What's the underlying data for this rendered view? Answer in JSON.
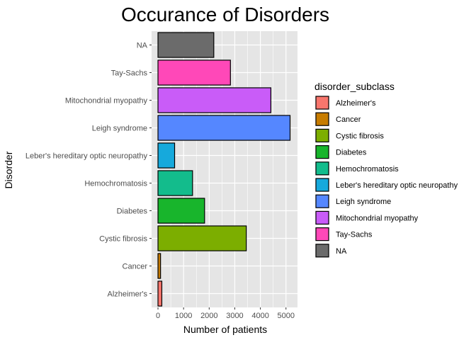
{
  "chart_data": {
    "type": "bar",
    "orientation": "horizontal",
    "title": "Occurance of Disorders",
    "xlabel": "Number of patients",
    "ylabel": "Disorder",
    "xlim": [
      -250,
      5450
    ],
    "xticks": [
      0,
      1000,
      2000,
      3000,
      4000,
      5000
    ],
    "grid": true,
    "legend_title": "disorder_subclass",
    "legend_position": "right",
    "categories": [
      "Alzheimer's",
      "Cancer",
      "Cystic fibrosis",
      "Diabetes",
      "Hemochromatosis",
      "Leber's hereditary optic neuropathy",
      "Leigh syndrome",
      "Mitochondrial myopathy",
      "Tay-Sachs",
      "NA"
    ],
    "values": [
      150,
      100,
      3450,
      1820,
      1350,
      650,
      5160,
      4410,
      2830,
      2180
    ],
    "colors": [
      "#F8766D",
      "#D89000",
      "#A3A500",
      "#39B600",
      "#00BF7D",
      "#00BFC4",
      "#00B0F6",
      "#9590FF",
      "#E76BF3",
      "#FF62BC"
    ],
    "bar_colors": [
      "#F8766D",
      "#C77C00",
      "#7CAE00",
      "#18B52C",
      "#13BC8C",
      "#16A9DC",
      "#5587FF",
      "#C95CF8",
      "#FF48B8",
      "#6B6B6B"
    ],
    "legend_entries": [
      "Alzheimer's",
      "Cancer",
      "Cystic fibrosis",
      "Diabetes",
      "Hemochromatosis",
      "Leber's hereditary optic neuropathy",
      "Leigh syndrome",
      "Mitochondrial myopathy",
      "Tay-Sachs",
      "NA"
    ],
    "panel_background": "#E5E5E5",
    "grid_color": "#FFFFFF"
  }
}
